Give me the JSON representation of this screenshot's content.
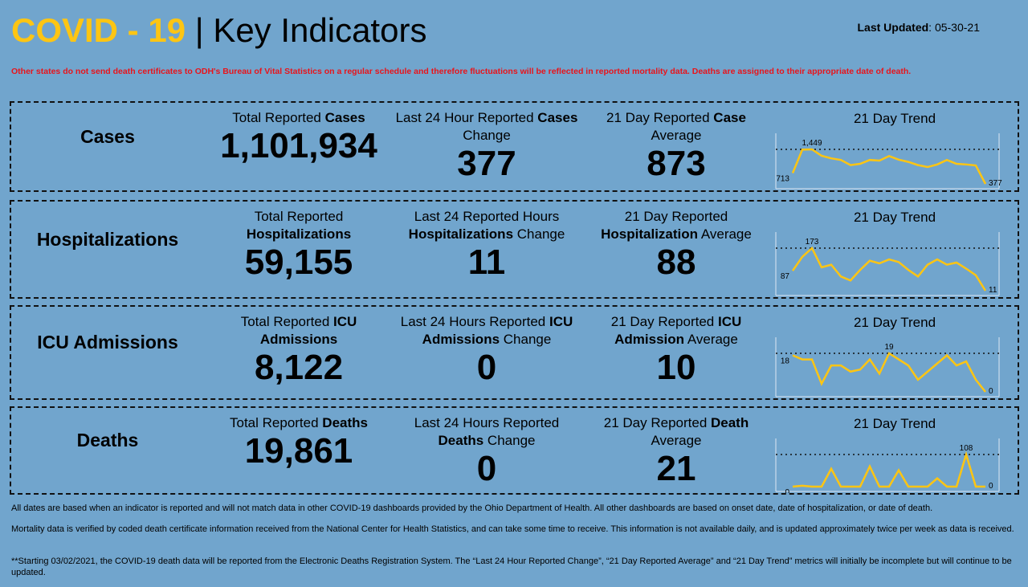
{
  "header": {
    "title_highlight": "COVID - 19",
    "title_sep": " | ",
    "title_rest": "Key Indicators",
    "last_updated_label": "Last Updated",
    "last_updated_value": ": 05-30-21"
  },
  "notice": "Other states do not send death certificates to ODH's Bureau of Vital Statistics on a regular schedule and therefore fluctuations will be reflected in reported mortality data. Deaths are assigned to their appropriate date of death.",
  "colors": {
    "background": "#71a5cd",
    "title_accent": "#fdc513",
    "notice": "#e8141b",
    "trend_line": "#fdc513"
  },
  "rows": [
    {
      "label": "Cases",
      "c1": [
        "Total Reported ",
        "Cases",
        ""
      ],
      "v1": "1,101,934",
      "c2": [
        "Last 24 Hour Reported ",
        "Cases",
        " Change"
      ],
      "v2": "377",
      "c3": [
        "21 Day Reported ",
        "Case",
        " Average"
      ],
      "v3": "873",
      "trend_title": "21 Day Trend",
      "trend": [
        713,
        1440,
        1449,
        1250,
        1170,
        1120,
        960,
        1000,
        1120,
        1100,
        1240,
        1130,
        1060,
        960,
        900,
        980,
        1120,
        1000,
        980,
        950,
        377
      ],
      "first_label": "713",
      "max_label": "1,449",
      "last_label": "377"
    },
    {
      "label": "Hospitalizations",
      "c1": [
        "Total Reported ",
        "Hospitalizations",
        ""
      ],
      "v1": "59,155",
      "c2": [
        "Last 24 Reported Hours ",
        "Hospitalizations",
        " Change"
      ],
      "v2": "11",
      "c3": [
        "21 Day Reported ",
        "Hospitalization",
        " Average"
      ],
      "v3": "88",
      "trend_title": "21 Day Trend",
      "trend": [
        87,
        140,
        173,
        100,
        110,
        65,
        50,
        90,
        125,
        115,
        130,
        120,
        90,
        65,
        110,
        130,
        110,
        118,
        95,
        70,
        11
      ],
      "first_label": "87",
      "max_label": "173",
      "last_label": "11"
    },
    {
      "label": "ICU Admissions",
      "c1": [
        "Total Reported ",
        "ICU Admissions",
        ""
      ],
      "v1": "8,122",
      "c2": [
        "Last 24 Hours Reported ",
        "ICU Admissions",
        " Change"
      ],
      "v2": "0",
      "c3": [
        "21 Day Reported ",
        "ICU Admission",
        " Average"
      ],
      "v3": "10",
      "trend_title": "21 Day Trend",
      "trend": [
        18,
        16,
        16,
        4,
        13,
        13,
        10,
        11,
        16,
        9,
        19,
        16,
        13,
        6,
        10,
        14,
        18,
        13,
        15,
        6,
        0
      ],
      "first_label": "18",
      "max_label": "19",
      "last_label": "0"
    },
    {
      "label": "Deaths",
      "c1": [
        "Total Reported ",
        "Deaths",
        ""
      ],
      "v1": "19,861",
      "c2": [
        "Last 24 Hours Reported ",
        "Deaths",
        " Change"
      ],
      "v2": "0",
      "c3": [
        "21 Day Reported ",
        "Death",
        " Average"
      ],
      "v3": "21",
      "trend_title": "21 Day Trend",
      "trend": [
        0,
        3,
        0,
        0,
        60,
        0,
        0,
        0,
        68,
        0,
        0,
        55,
        0,
        0,
        0,
        28,
        0,
        0,
        108,
        0,
        0
      ],
      "first_label": "0",
      "max_label": "108",
      "last_label": "0"
    }
  ],
  "footer": [
    "All dates are based when an indicator is reported and will not match data in other COVID-19 dashboards provided by the Ohio Department of Health. All other dashboards are based on onset date, date of hospitalization, or date of death.",
    "Mortality data is verified by coded death certificate information received from the National Center for Health Statistics, and can take some time to receive. This information is not available daily, and is updated approximately twice per week as data is received.",
    "**Starting 03/02/2021, the COVID-19 death data will be reported from the Electronic Deaths Registration System. The “Last 24 Hour Reported Change”, “21 Day Reported Average” and “21 Day Trend” metrics will initially be incomplete but will continue to be updated."
  ]
}
